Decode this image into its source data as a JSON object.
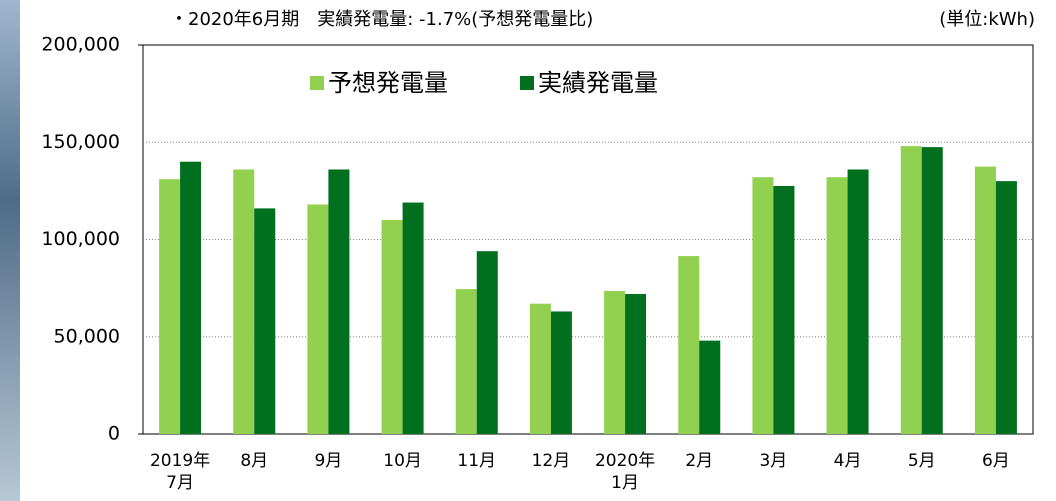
{
  "chart_data": {
    "type": "bar",
    "title": "・2020年6月期　実績発電量: -1.7%(予想発電量比)",
    "unit": "(単位:kWh)",
    "categories": [
      "2019年\n7月",
      "8月",
      "9月",
      "10月",
      "11月",
      "12月",
      "2020年\n1月",
      "2月",
      "3月",
      "4月",
      "5月",
      "6月"
    ],
    "series": [
      {
        "name": "予想発電量",
        "color": "#92d050",
        "values": [
          131000,
          136000,
          118000,
          110000,
          74500,
          67000,
          73500,
          91500,
          132000,
          132000,
          148000,
          137500
        ]
      },
      {
        "name": "実績発電量",
        "color": "#006f1e",
        "values": [
          140000,
          116000,
          136000,
          119000,
          94000,
          63000,
          72000,
          48000,
          127500,
          136000,
          147500,
          130000
        ]
      }
    ],
    "ylim": [
      0,
      200000
    ],
    "yticks": [
      0,
      {
        "value": 50000,
        "label": "50,000"
      },
      {
        "value": 100000,
        "label": "100,000"
      },
      {
        "value": 150000,
        "label": "150,000"
      },
      {
        "value": 200000,
        "label": "200,000"
      }
    ],
    "grid": true
  }
}
